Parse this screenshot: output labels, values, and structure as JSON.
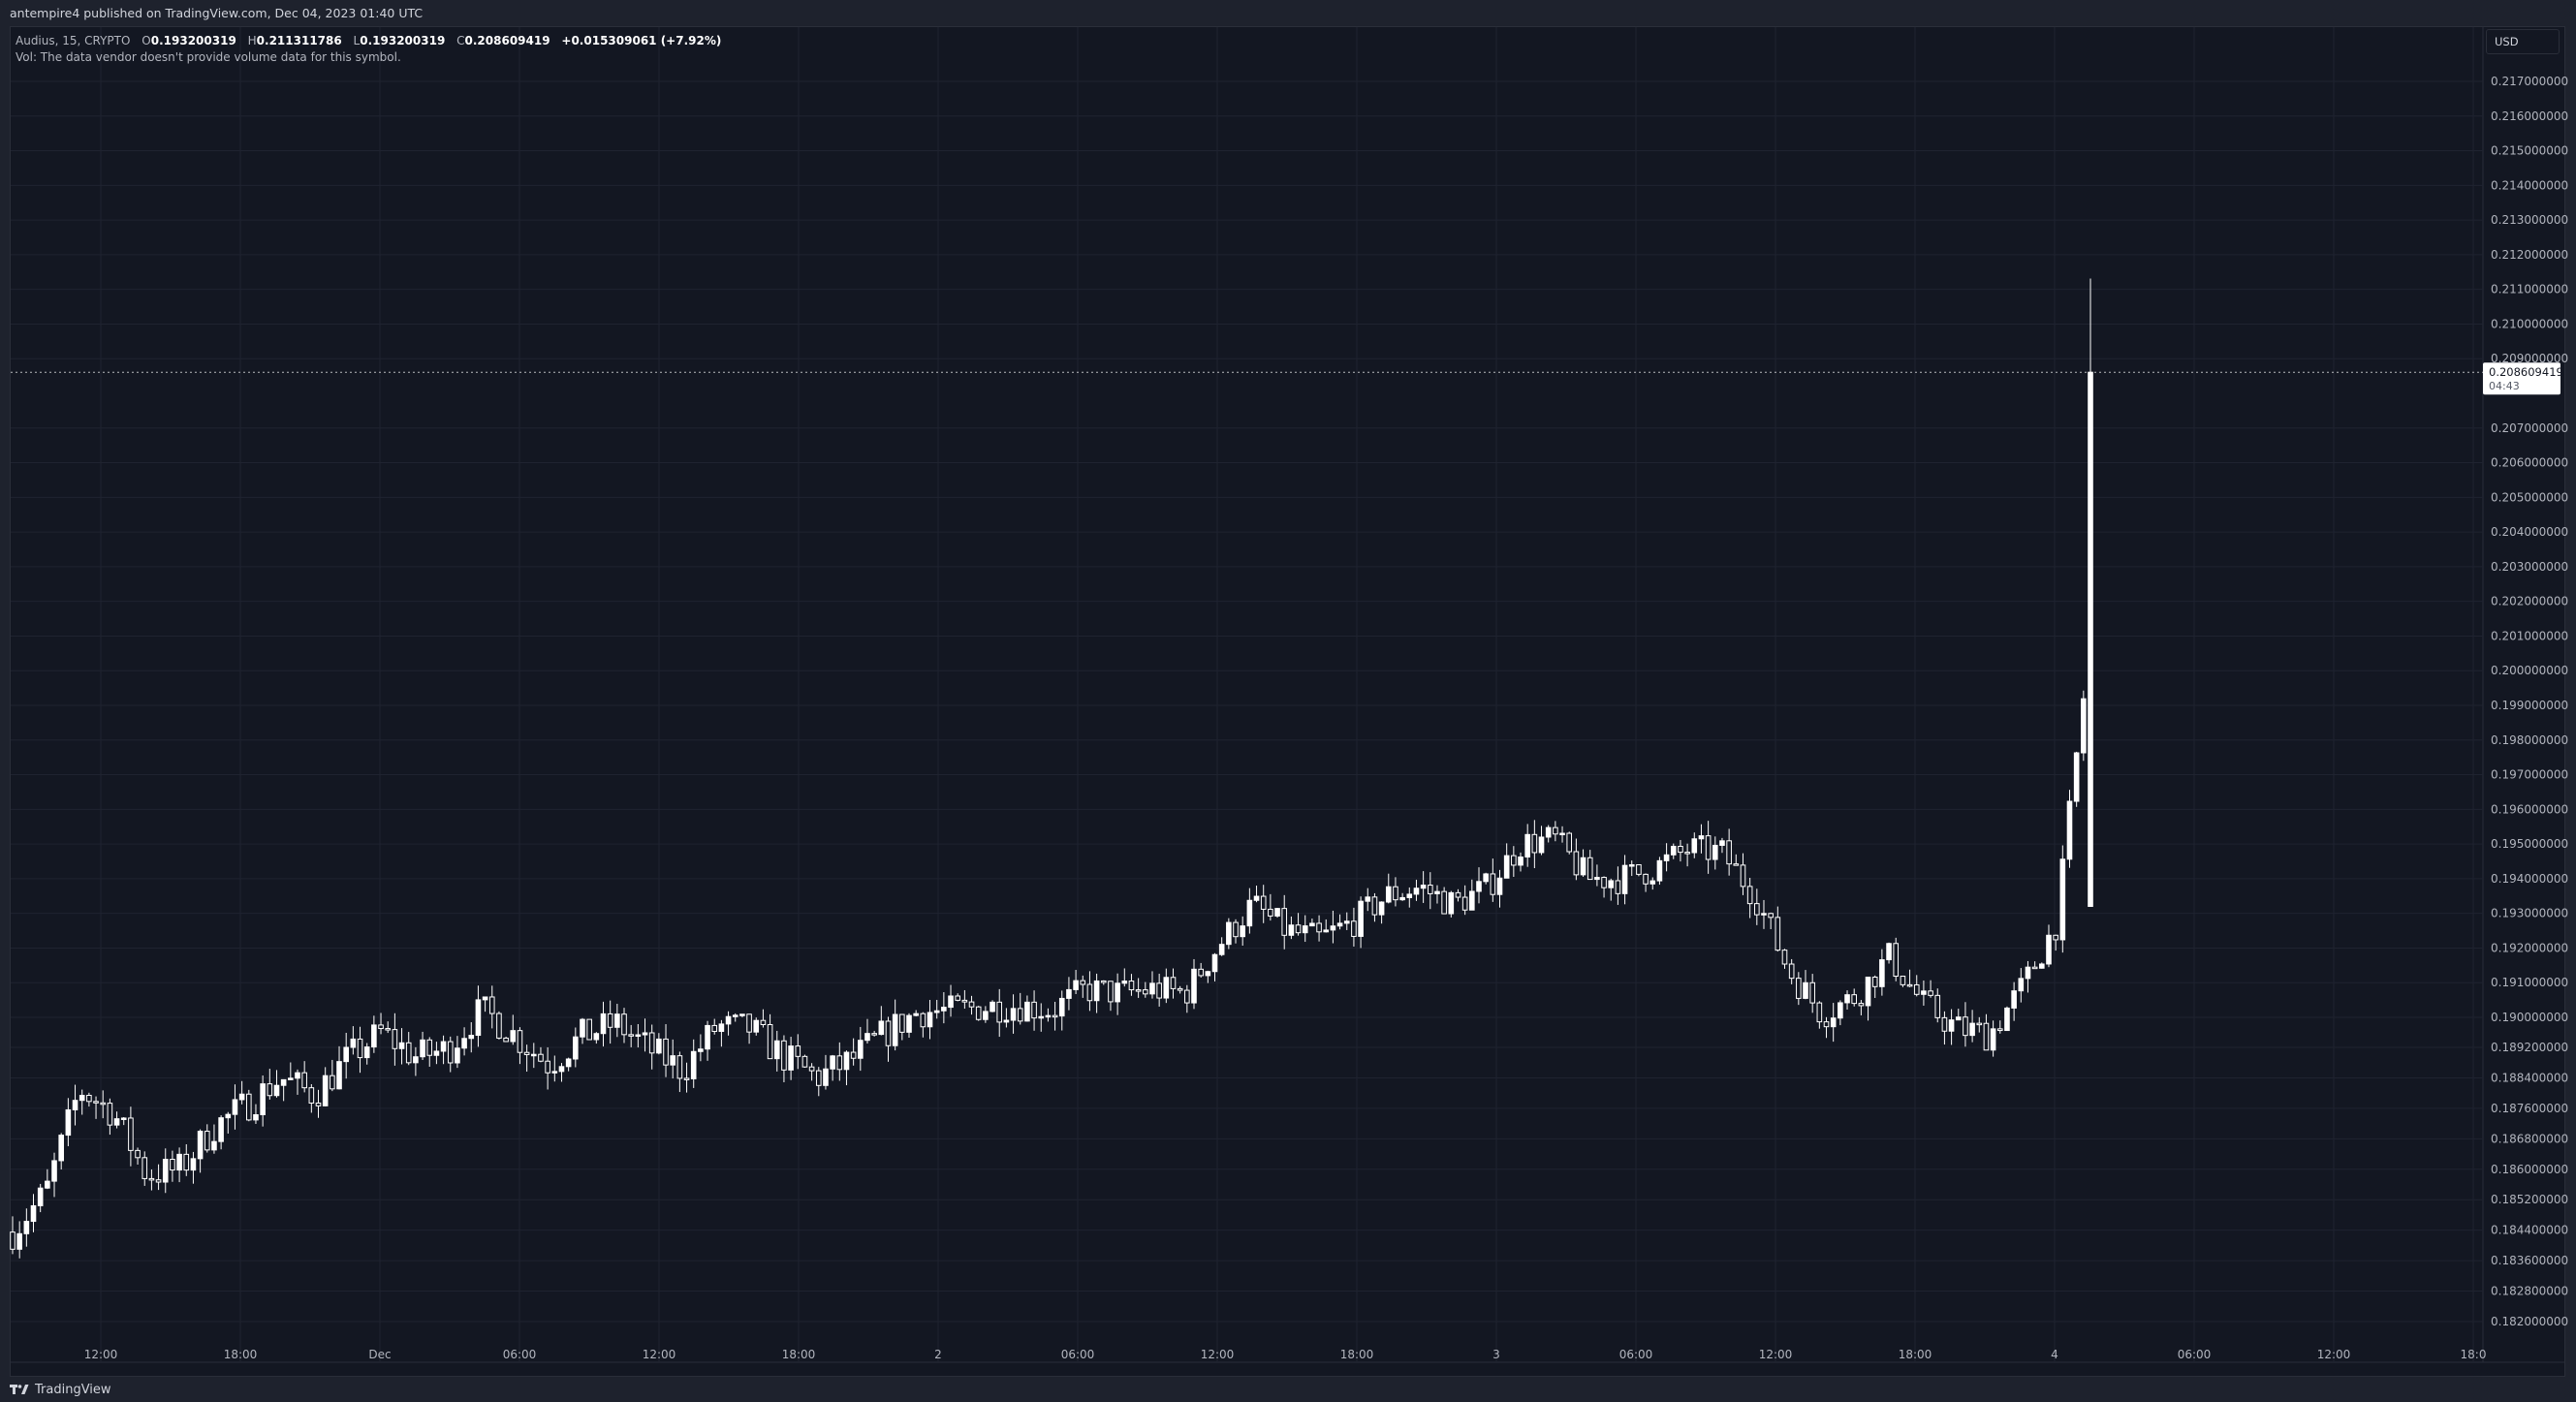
{
  "header": {
    "published_line": "antempire4 published on TradingView.com, Dec 04, 2023 01:40 UTC"
  },
  "legend": {
    "symbol": "Audius, 15, CRYPTO",
    "open_label": "O",
    "open_value": "0.193200319",
    "high_label": "H",
    "high_value": "0.211311786",
    "low_label": "L",
    "low_value": "0.193200319",
    "close_label": "C",
    "close_value": "0.208609419",
    "change": "+0.015309061 (+7.92%)",
    "volume_note": "Vol: The data vendor doesn't provide volume data for this symbol."
  },
  "currency": "USD",
  "footer": {
    "brand": "TradingView"
  },
  "colors": {
    "background": "#131722",
    "frame": "#1e222d",
    "grid": "#1f2330",
    "candle": "#ffffff",
    "axis_text": "#b2b5be",
    "price_label_bg": "#ffffff"
  },
  "chart_data": {
    "type": "candlestick",
    "interval": "15",
    "grid": true,
    "y_axis": {
      "side": "right",
      "tick_labels": [
        "0.217000000",
        "0.216000000",
        "0.215000000",
        "0.214000000",
        "0.213000000",
        "0.212000000",
        "0.211000000",
        "0.210000000",
        "0.209000000",
        "0.207000000",
        "0.206000000",
        "0.205000000",
        "0.204000000",
        "0.203000000",
        "0.202000000",
        "0.201000000",
        "0.200000000",
        "0.199000000",
        "0.198000000",
        "0.197000000",
        "0.196000000",
        "0.195000000",
        "0.194000000",
        "0.193000000",
        "0.192000000",
        "0.191000000",
        "0.190000000",
        "0.189200000",
        "0.188400000",
        "0.187600000",
        "0.186800000",
        "0.186000000",
        "0.185200000",
        "0.184400000",
        "0.183600000",
        "0.182800000",
        "0.182000000"
      ]
    },
    "x_axis": {
      "tick_labels": [
        "12:00",
        "18:00",
        "Dec",
        "06:00",
        "12:00",
        "18:00",
        "2",
        "06:00",
        "12:00",
        "18:00",
        "3",
        "06:00",
        "12:00",
        "18:00",
        "4",
        "06:00",
        "12:00",
        "18:0"
      ]
    },
    "last_price": {
      "value": "0.208609419",
      "countdown": "04:43"
    },
    "candles_ohlc_anchor": [
      [
        0.1842,
        0.1845
      ],
      [
        0.1848,
        0.186
      ],
      [
        0.187,
        0.1892
      ],
      [
        0.187,
        0.188
      ],
      [
        0.1865,
        0.1852
      ],
      [
        0.1855,
        0.1865
      ],
      [
        0.1865,
        0.1877
      ],
      [
        0.1873,
        0.1881
      ],
      [
        0.188,
        0.1888
      ],
      [
        0.1884,
        0.1875
      ],
      [
        0.188,
        0.1898
      ],
      [
        0.1898,
        0.1894
      ],
      [
        0.1892,
        0.1887
      ],
      [
        0.1887,
        0.1896
      ],
      [
        0.1905,
        0.19
      ],
      [
        0.19,
        0.189
      ],
      [
        0.189,
        0.1885
      ],
      [
        0.189,
        0.19
      ],
      [
        0.1895,
        0.1902
      ],
      [
        0.1898,
        0.1885
      ],
      [
        0.188,
        0.1892
      ],
      [
        0.1892,
        0.1903
      ],
      [
        0.19,
        0.1894
      ],
      [
        0.1895,
        0.1884
      ],
      [
        0.188,
        0.1888
      ],
      [
        0.1885,
        0.1892
      ],
      [
        0.1892,
        0.1899
      ],
      [
        0.1899,
        0.1904
      ],
      [
        0.1904,
        0.19
      ],
      [
        0.19,
        0.1906
      ],
      [
        0.1905,
        0.1902
      ],
      [
        0.19,
        0.1904
      ],
      [
        0.1906,
        0.191
      ],
      [
        0.1908,
        0.1906
      ],
      [
        0.1906,
        0.191
      ],
      [
        0.191,
        0.1904
      ],
      [
        0.1904,
        0.1938
      ],
      [
        0.1935,
        0.193
      ],
      [
        0.193,
        0.192
      ],
      [
        0.192,
        0.1925
      ],
      [
        0.1925,
        0.193
      ],
      [
        0.193,
        0.194
      ],
      [
        0.194,
        0.1935
      ],
      [
        0.1935,
        0.193
      ],
      [
        0.193,
        0.1945
      ],
      [
        0.1945,
        0.1955
      ],
      [
        0.1955,
        0.1948
      ],
      [
        0.1945,
        0.1935
      ],
      [
        0.1935,
        0.1945
      ],
      [
        0.194,
        0.1946
      ],
      [
        0.1945,
        0.1952
      ],
      [
        0.195,
        0.1945
      ],
      [
        0.1945,
        0.1925
      ],
      [
        0.1922,
        0.1905
      ],
      [
        0.1905,
        0.1897
      ],
      [
        0.1897,
        0.1915
      ],
      [
        0.1915,
        0.192
      ],
      [
        0.191,
        0.1898
      ],
      [
        0.1898,
        0.1896
      ],
      [
        0.1896,
        0.1895
      ],
      [
        0.1898,
        0.192
      ],
      [
        0.192,
        0.1935
      ],
      [
        0.1932,
        0.20861
      ]
    ]
  }
}
